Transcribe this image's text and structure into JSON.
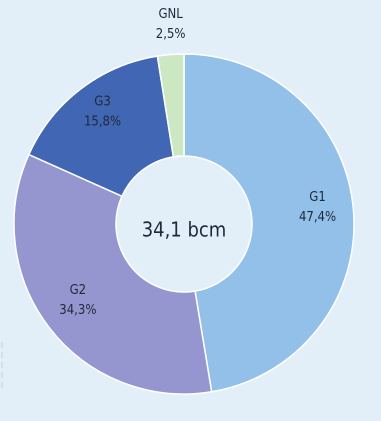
{
  "chart_data": {
    "type": "pie",
    "variant": "donut",
    "center_label": "34,1 bcm",
    "slices": [
      {
        "name": "G1",
        "value": 47.4,
        "label": "47,4%",
        "color": "#92c0e8"
      },
      {
        "name": "G2",
        "value": 34.3,
        "label": "34,3%",
        "color": "#9596cf"
      },
      {
        "name": "G3",
        "value": 15.8,
        "label": "15,8%",
        "color": "#4166b4"
      },
      {
        "name": "GNL",
        "value": 2.5,
        "label": "2,5%",
        "color": "#cce8c2"
      }
    ],
    "background": "#e3eff8",
    "stroke_color": "#ffffff",
    "text_color": "#1e2a3a"
  }
}
